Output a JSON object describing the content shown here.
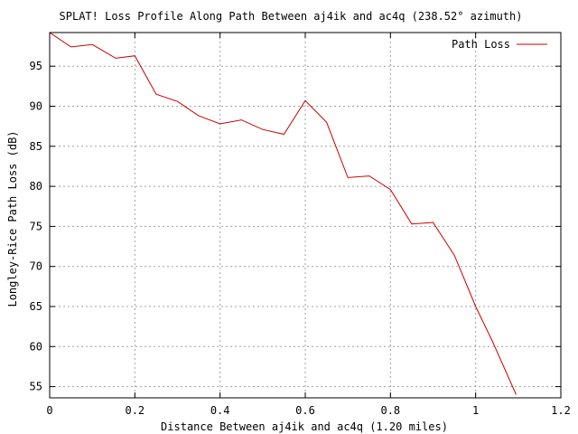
{
  "chart_data": {
    "type": "line",
    "title": "SPLAT! Loss Profile Along Path Between aj4ik and ac4q (238.52° azimuth)",
    "xlabel": "Distance Between aj4ik and ac4q (1.20 miles)",
    "ylabel": "Longley-Rice Path Loss (dB)",
    "xlim": [
      0,
      1.2
    ],
    "ylim": [
      53.6,
      99.2
    ],
    "xticks": [
      0,
      0.2,
      0.4,
      0.6,
      0.8,
      1,
      1.2
    ],
    "xtick_labels": [
      "0",
      "0.2",
      "0.4",
      "0.6",
      "0.8",
      "1",
      "1.2"
    ],
    "yticks": [
      55,
      60,
      65,
      70,
      75,
      80,
      85,
      90,
      95
    ],
    "ytick_labels": [
      "55",
      "60",
      "65",
      "70",
      "75",
      "80",
      "85",
      "90",
      "95"
    ],
    "grid": true,
    "legend_position": "top-right",
    "series": [
      {
        "name": "Path Loss",
        "color": "#cc0000",
        "x": [
          0.0,
          0.05,
          0.1,
          0.155,
          0.2,
          0.25,
          0.3,
          0.35,
          0.4,
          0.45,
          0.5,
          0.55,
          0.6,
          0.65,
          0.7,
          0.75,
          0.8,
          0.85,
          0.9,
          0.95,
          1.0,
          1.04,
          1.095
        ],
        "y": [
          99.2,
          97.4,
          97.7,
          96.0,
          96.3,
          91.5,
          90.6,
          88.8,
          87.8,
          88.3,
          87.1,
          86.5,
          90.7,
          88.0,
          81.1,
          81.3,
          79.6,
          75.3,
          75.5,
          71.4,
          65.0,
          60.6,
          54.0
        ]
      }
    ]
  }
}
